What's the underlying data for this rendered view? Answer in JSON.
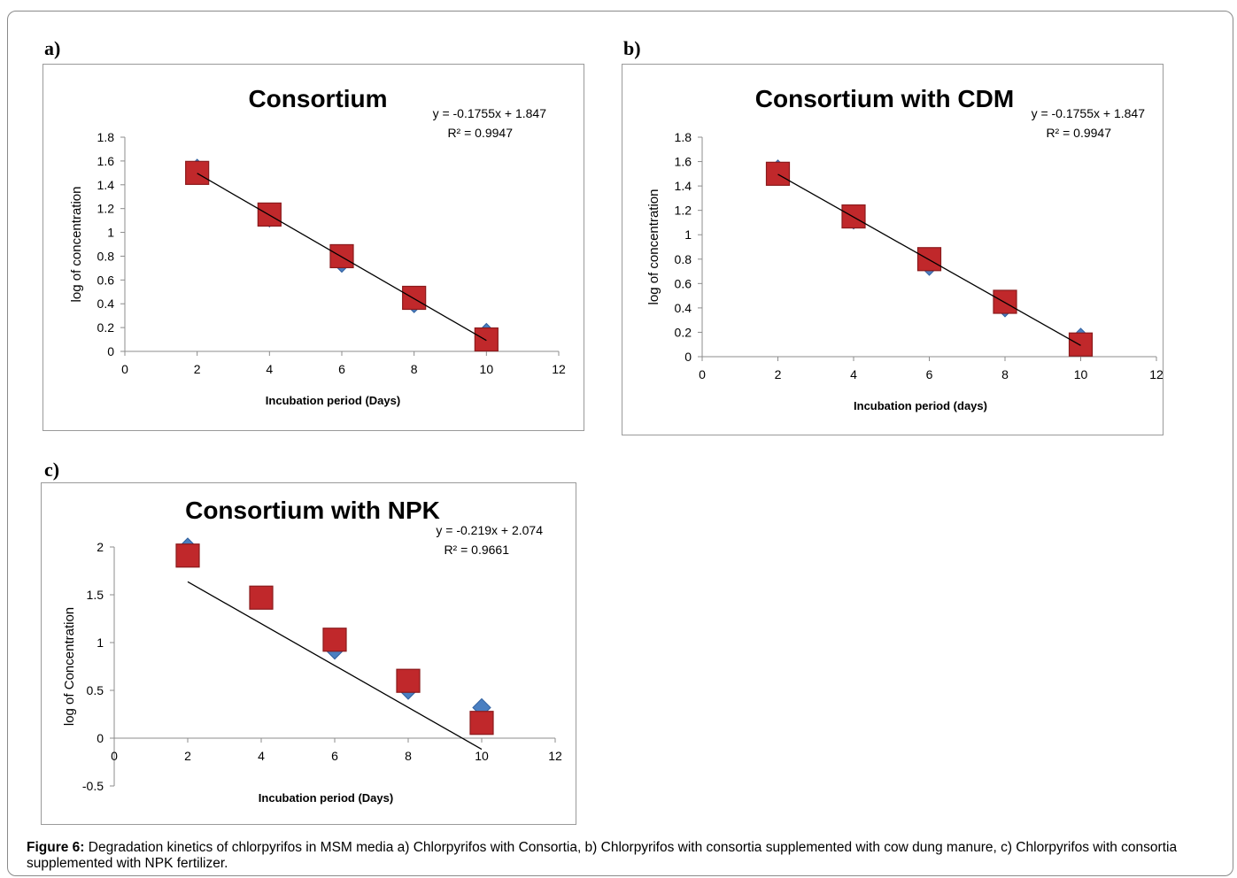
{
  "panels": [
    {
      "letter": "a)"
    },
    {
      "letter": "b)"
    },
    {
      "letter": "c)"
    }
  ],
  "caption": {
    "label": "Figure 6:",
    "text": " Degradation kinetics of chlorpyrifos in MSM media a) Chlorpyrifos with Consortia, b) Chlorpyrifos with consortia supplemented with cow dung manure, c) Chlorpyrifos with consortia supplemented with NPK fertilizer."
  },
  "colors": {
    "diamond": "#4a7fc1",
    "square": "#c0282b",
    "trendline": "#000000",
    "axis": "#8c8c8c"
  },
  "chart_data": [
    {
      "type": "scatter",
      "title": "Consortium",
      "xlabel": "Incubation period (Days)",
      "ylabel": "log of concentration",
      "xlim": [
        0,
        12
      ],
      "ylim": [
        0,
        1.8
      ],
      "xticks": [
        "0",
        "2",
        "4",
        "6",
        "8",
        "10",
        "12"
      ],
      "yticks": [
        "0",
        "0.2",
        "0.4",
        "0.6",
        "0.8",
        "1",
        "1.2",
        "1.4",
        "1.6",
        "1.8"
      ],
      "series": [
        {
          "marker": "diamond",
          "x": [
            2,
            4,
            6,
            8,
            10
          ],
          "y": [
            1.54,
            1.12,
            0.74,
            0.4,
            0.16
          ]
        },
        {
          "marker": "square",
          "x": [
            2,
            4,
            6,
            8,
            10
          ],
          "y": [
            1.5,
            1.15,
            0.8,
            0.45,
            0.1
          ]
        }
      ],
      "trendline": {
        "slope": -0.1755,
        "intercept": 1.847,
        "x_range": [
          2,
          10
        ]
      },
      "equation": "y = -0.1755x + 1.847",
      "r2": "R² = 0.9947"
    },
    {
      "type": "scatter",
      "title": "Consortium with CDM",
      "xlabel": "Incubation period (days)",
      "ylabel": "log of concentration",
      "xlim": [
        0,
        12
      ],
      "ylim": [
        0,
        1.8
      ],
      "xticks": [
        "0",
        "2",
        "4",
        "6",
        "8",
        "10",
        "12"
      ],
      "yticks": [
        "0",
        "0.2",
        "0.4",
        "0.6",
        "0.8",
        "1",
        "1.2",
        "1.4",
        "1.6",
        "1.8"
      ],
      "series": [
        {
          "marker": "diamond",
          "x": [
            2,
            4,
            6,
            8,
            10
          ],
          "y": [
            1.54,
            1.12,
            0.74,
            0.4,
            0.16
          ]
        },
        {
          "marker": "square",
          "x": [
            2,
            4,
            6,
            8,
            10
          ],
          "y": [
            1.5,
            1.15,
            0.8,
            0.45,
            0.1
          ]
        }
      ],
      "trendline": {
        "slope": -0.1755,
        "intercept": 1.847,
        "x_range": [
          2,
          10
        ]
      },
      "equation": "y = -0.1755x + 1.847",
      "r2": "R² = 0.9947"
    },
    {
      "type": "scatter",
      "title": "Consortium with NPK",
      "xlabel": "Incubation period (Days)",
      "ylabel": "log of Concentration",
      "xlim": [
        0,
        12
      ],
      "ylim": [
        -0.5,
        2
      ],
      "xticks": [
        "0",
        "2",
        "4",
        "6",
        "8",
        "10",
        "12"
      ],
      "yticks": [
        "-0.5",
        "0",
        "0.5",
        "1",
        "1.5",
        "2"
      ],
      "series": [
        {
          "marker": "diamond",
          "x": [
            2,
            4,
            6,
            8,
            10
          ],
          "y": [
            2.0,
            1.45,
            0.92,
            0.5,
            0.32
          ]
        },
        {
          "marker": "square",
          "x": [
            2,
            4,
            6,
            8,
            10
          ],
          "y": [
            1.91,
            1.47,
            1.03,
            0.6,
            0.16
          ]
        }
      ],
      "trendline": {
        "slope": -0.219,
        "intercept": 2.074,
        "x_range": [
          2,
          10
        ]
      },
      "equation": "y = -0.219x + 2.074",
      "r2": "R² = 0.9661"
    }
  ]
}
